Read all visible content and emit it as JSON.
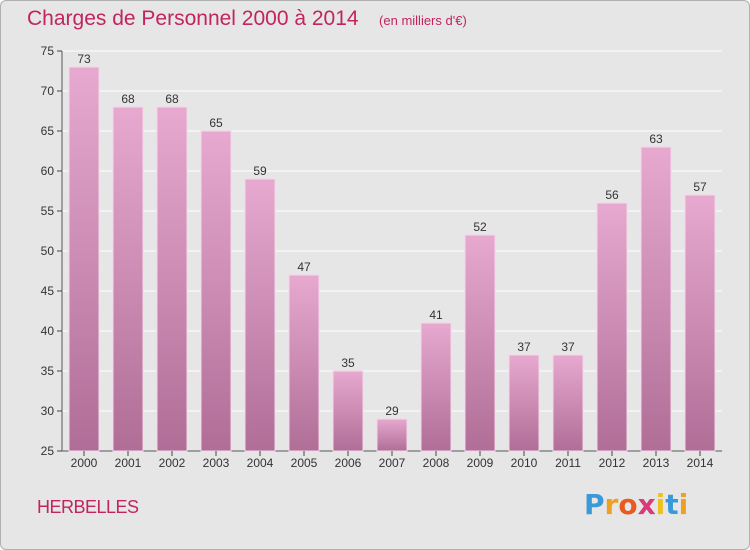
{
  "chart_data": {
    "type": "bar",
    "title": "Charges de Personnel 2000 à 2014",
    "subtitle": "(en milliers d'€)",
    "xlabel": "",
    "ylabel": "",
    "categories": [
      "2000",
      "2001",
      "2002",
      "2003",
      "2004",
      "2005",
      "2006",
      "2007",
      "2008",
      "2009",
      "2010",
      "2011",
      "2012",
      "2013",
      "2014"
    ],
    "values": [
      73,
      68,
      68,
      65,
      59,
      47,
      35,
      29,
      41,
      52,
      37,
      37,
      56,
      63,
      57
    ],
    "ylim": [
      25,
      75
    ],
    "yticks": [
      25,
      30,
      35,
      40,
      45,
      50,
      55,
      60,
      65,
      70,
      75
    ],
    "grid": true,
    "colors": {
      "bar_top": "#e7a9cf",
      "bar_bottom": "#b06e97",
      "grid": "#ffffff",
      "title": "#c2245f"
    }
  },
  "commune": "HERBELLES",
  "logo": {
    "letters": [
      "P",
      "r",
      "o",
      "x",
      "i",
      "t",
      "i"
    ],
    "colors": [
      "#3a9ad9",
      "#f0a020",
      "#e85a1e",
      "#d83a7a",
      "#f0c020",
      "#3a9ad9",
      "#f0a020"
    ]
  }
}
